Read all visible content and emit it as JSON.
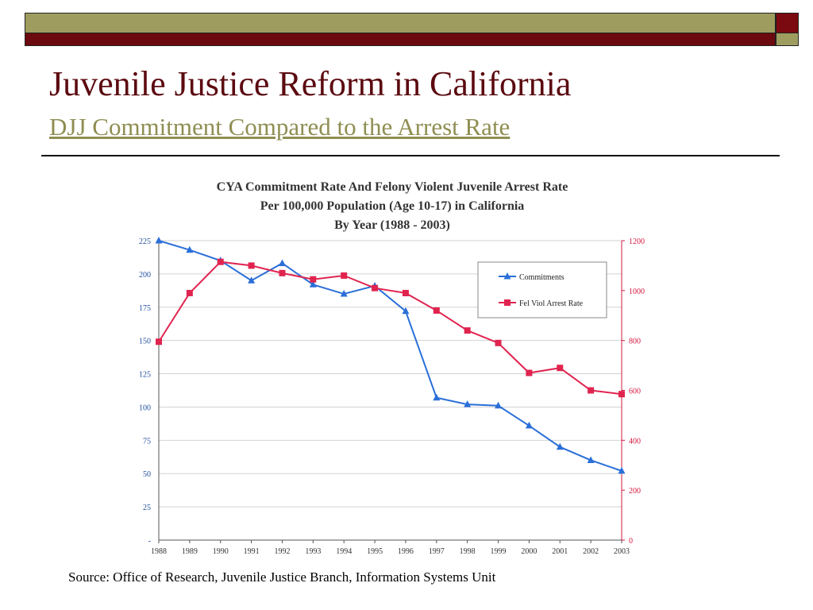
{
  "slide": {
    "title": "Juvenile Justice Reform in California",
    "subtitle": "DJJ Commitment Compared to the Arrest Rate",
    "source": "Source: Office of Research, Juvenile Justice Branch, Information Systems Unit",
    "colors": {
      "maroon": "#6b0a0f",
      "olive": "#9e9d5f",
      "title": "#5b0a10"
    }
  },
  "chart_data": {
    "type": "line",
    "title_lines": [
      "CYA Commitment Rate And Felony Violent Juvenile Arrest Rate",
      "Per 100,000 Population (Age 10-17) in California",
      "By Year (1988 - 2003)"
    ],
    "categories": [
      "1988",
      "1989",
      "1990",
      "1991",
      "1992",
      "1993",
      "1994",
      "1995",
      "1996",
      "1997",
      "1998",
      "1999",
      "2000",
      "2001",
      "2002",
      "2003"
    ],
    "left_axis": {
      "ylim": [
        0,
        225
      ],
      "ticks": [
        "-",
        "25",
        "50",
        "75",
        "100",
        "125",
        "150",
        "175",
        "200",
        "225"
      ],
      "tick_values": [
        0,
        25,
        50,
        75,
        100,
        125,
        150,
        175,
        200,
        225
      ],
      "color": "#1f4e9e"
    },
    "right_axis": {
      "ylim": [
        0,
        1200
      ],
      "ticks": [
        "0",
        "200",
        "400",
        "600",
        "800",
        "1000",
        "1200"
      ],
      "tick_values": [
        0,
        200,
        400,
        600,
        800,
        1000,
        1200
      ],
      "color": "#d4163c"
    },
    "grid": true,
    "legend_position": "top-right",
    "series": [
      {
        "name": "Commitments",
        "axis": "left",
        "marker": "triangle",
        "color": "#2a6fd8",
        "values": [
          225,
          218,
          210,
          195,
          208,
          192,
          185,
          191,
          172,
          107,
          102,
          101,
          86,
          70,
          60,
          52
        ]
      },
      {
        "name": "Fel Viol Arrest Rate",
        "axis": "right",
        "marker": "square",
        "color": "#e0244f",
        "values": [
          795,
          990,
          1115,
          1100,
          1070,
          1045,
          1060,
          1010,
          990,
          920,
          840,
          790,
          670,
          690,
          600,
          585
        ]
      }
    ]
  }
}
